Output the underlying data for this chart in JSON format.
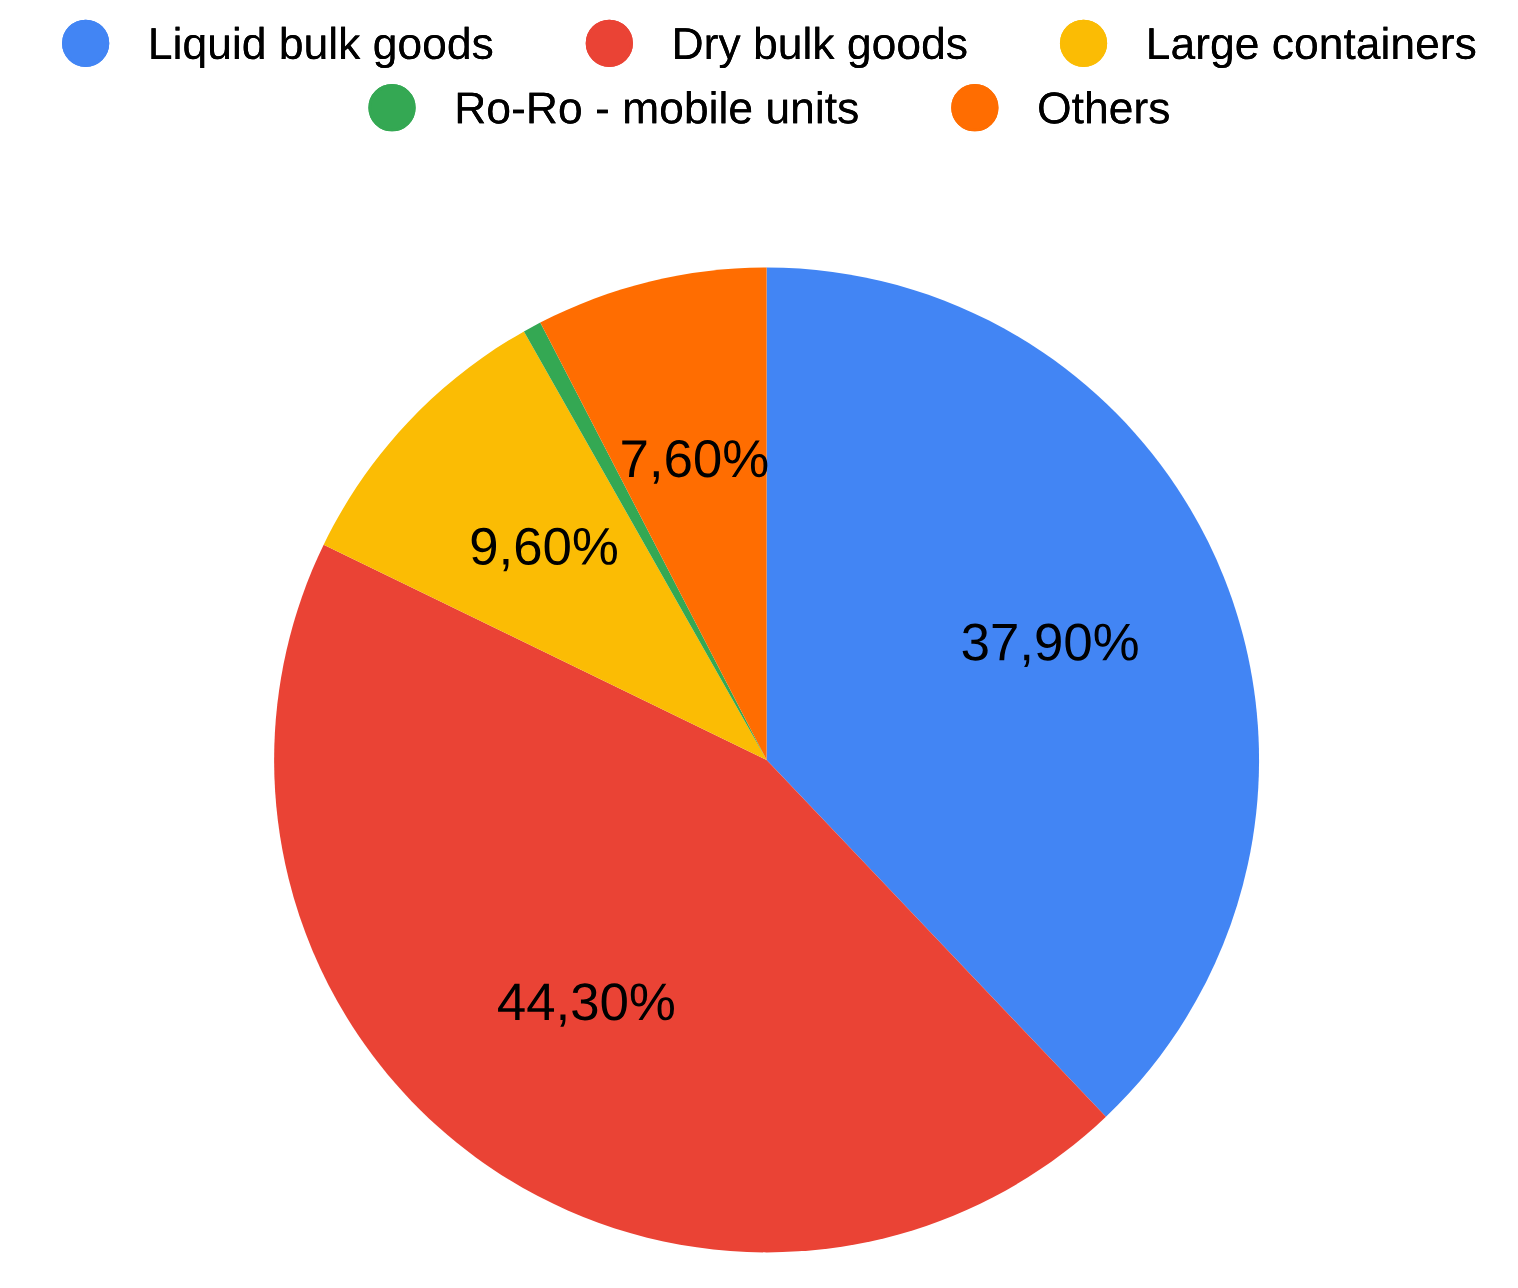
{
  "chart_data": {
    "type": "pie",
    "categories": [
      "Liquid bulk goods",
      "Dry bulk goods",
      "Large containers",
      "Ro-Ro - mobile units",
      "Others"
    ],
    "values": [
      37.9,
      44.3,
      9.6,
      0.6,
      7.6
    ],
    "colors": [
      "#4285f4",
      "#ea4335",
      "#fbbc04",
      "#34a853",
      "#ff6d01"
    ],
    "value_labels": [
      "37,90%",
      "44,30%",
      "9,60%",
      null,
      "7,60%"
    ],
    "legend": "top"
  }
}
